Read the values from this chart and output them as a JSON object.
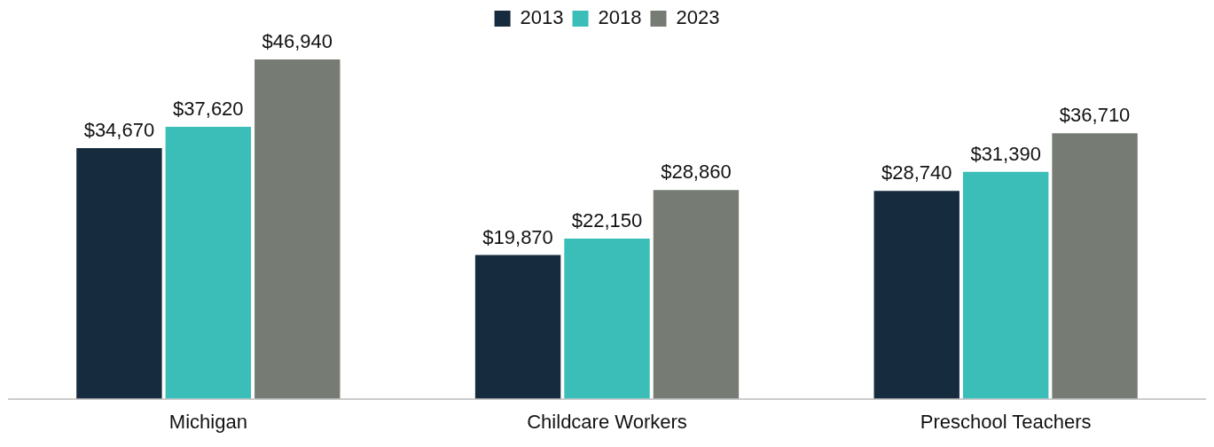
{
  "chart_data": {
    "type": "bar",
    "categories": [
      "Michigan",
      "Childcare Workers",
      "Preschool Teachers"
    ],
    "series": [
      {
        "name": "2013",
        "color": "#172b3f",
        "values": [
          34670,
          19870,
          28740
        ],
        "value_labels": [
          "$34,670",
          "$19,870",
          "$28,740"
        ]
      },
      {
        "name": "2018",
        "color": "#3bbdb8",
        "values": [
          37620,
          22150,
          31390
        ],
        "value_labels": [
          "$37,620",
          "$22,150",
          "$31,390"
        ]
      },
      {
        "name": "2023",
        "color": "#767c73",
        "values": [
          46940,
          28860,
          36710
        ],
        "value_labels": [
          "$46,940",
          "$28,860",
          "$36,710"
        ]
      }
    ],
    "legend": "top",
    "grid": false,
    "tick_labels": "x"
  }
}
